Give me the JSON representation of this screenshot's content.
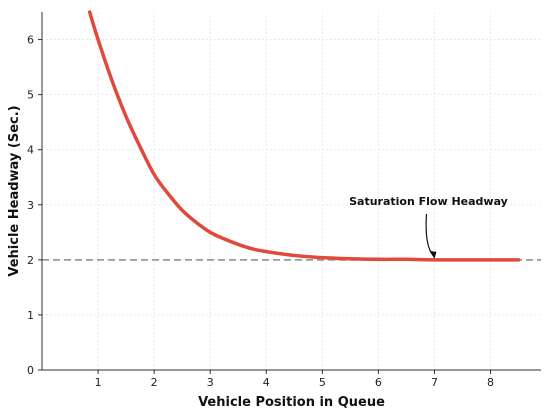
{
  "chart_data": {
    "type": "line",
    "title": "",
    "xlabel": "Vehicle Position in Queue",
    "ylabel": "Vehicle Headway (Sec.)",
    "xlim": [
      0,
      8.9
    ],
    "ylim": [
      0,
      6.5
    ],
    "xticks": [
      1,
      2,
      3,
      4,
      5,
      6,
      7,
      8
    ],
    "yticks": [
      0,
      1,
      2,
      3,
      4,
      5,
      6
    ],
    "grid": true,
    "series": [
      {
        "x": [
          0.85,
          1.0,
          1.25,
          1.5,
          1.75,
          2.0,
          2.25,
          2.5,
          2.75,
          3.0,
          3.25,
          3.5,
          3.75,
          4.0,
          4.5,
          5.0,
          5.5,
          6.0,
          6.5,
          7.0,
          7.5,
          8.0,
          8.5
        ],
        "y": [
          6.5,
          6.0,
          5.25,
          4.6,
          4.05,
          3.55,
          3.2,
          2.9,
          2.68,
          2.5,
          2.38,
          2.28,
          2.2,
          2.15,
          2.08,
          2.04,
          2.02,
          2.01,
          2.01,
          2.0,
          2.0,
          2.0,
          2.0
        ],
        "color": "#e04a3c"
      }
    ],
    "reference_line": {
      "y": 2.0,
      "style": "dashed",
      "color": "#9a9a9a"
    },
    "annotation": {
      "text": "Saturation Flow Headway",
      "x": 7.0,
      "y": 2.0
    }
  }
}
